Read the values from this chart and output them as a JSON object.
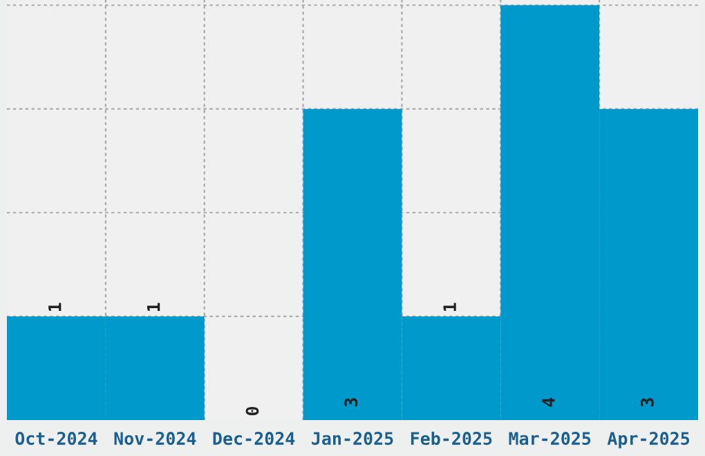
{
  "chart_data": {
    "type": "bar",
    "categories": [
      "Oct-2024",
      "Nov-2024",
      "Dec-2024",
      "Jan-2025",
      "Feb-2025",
      "Mar-2025",
      "Apr-2025"
    ],
    "values": [
      1,
      1,
      0,
      3,
      1,
      4,
      3
    ],
    "color": "#0099cc",
    "data_labels": true,
    "ylim": [
      0,
      4.05
    ],
    "yticks": [
      {
        "value": 1,
        "label": null
      },
      {
        "value": 2,
        "label": null
      },
      {
        "value": 3,
        "label": null
      },
      {
        "value": 4,
        "label": null
      }
    ],
    "tick_labels": "x",
    "grid": true
  }
}
